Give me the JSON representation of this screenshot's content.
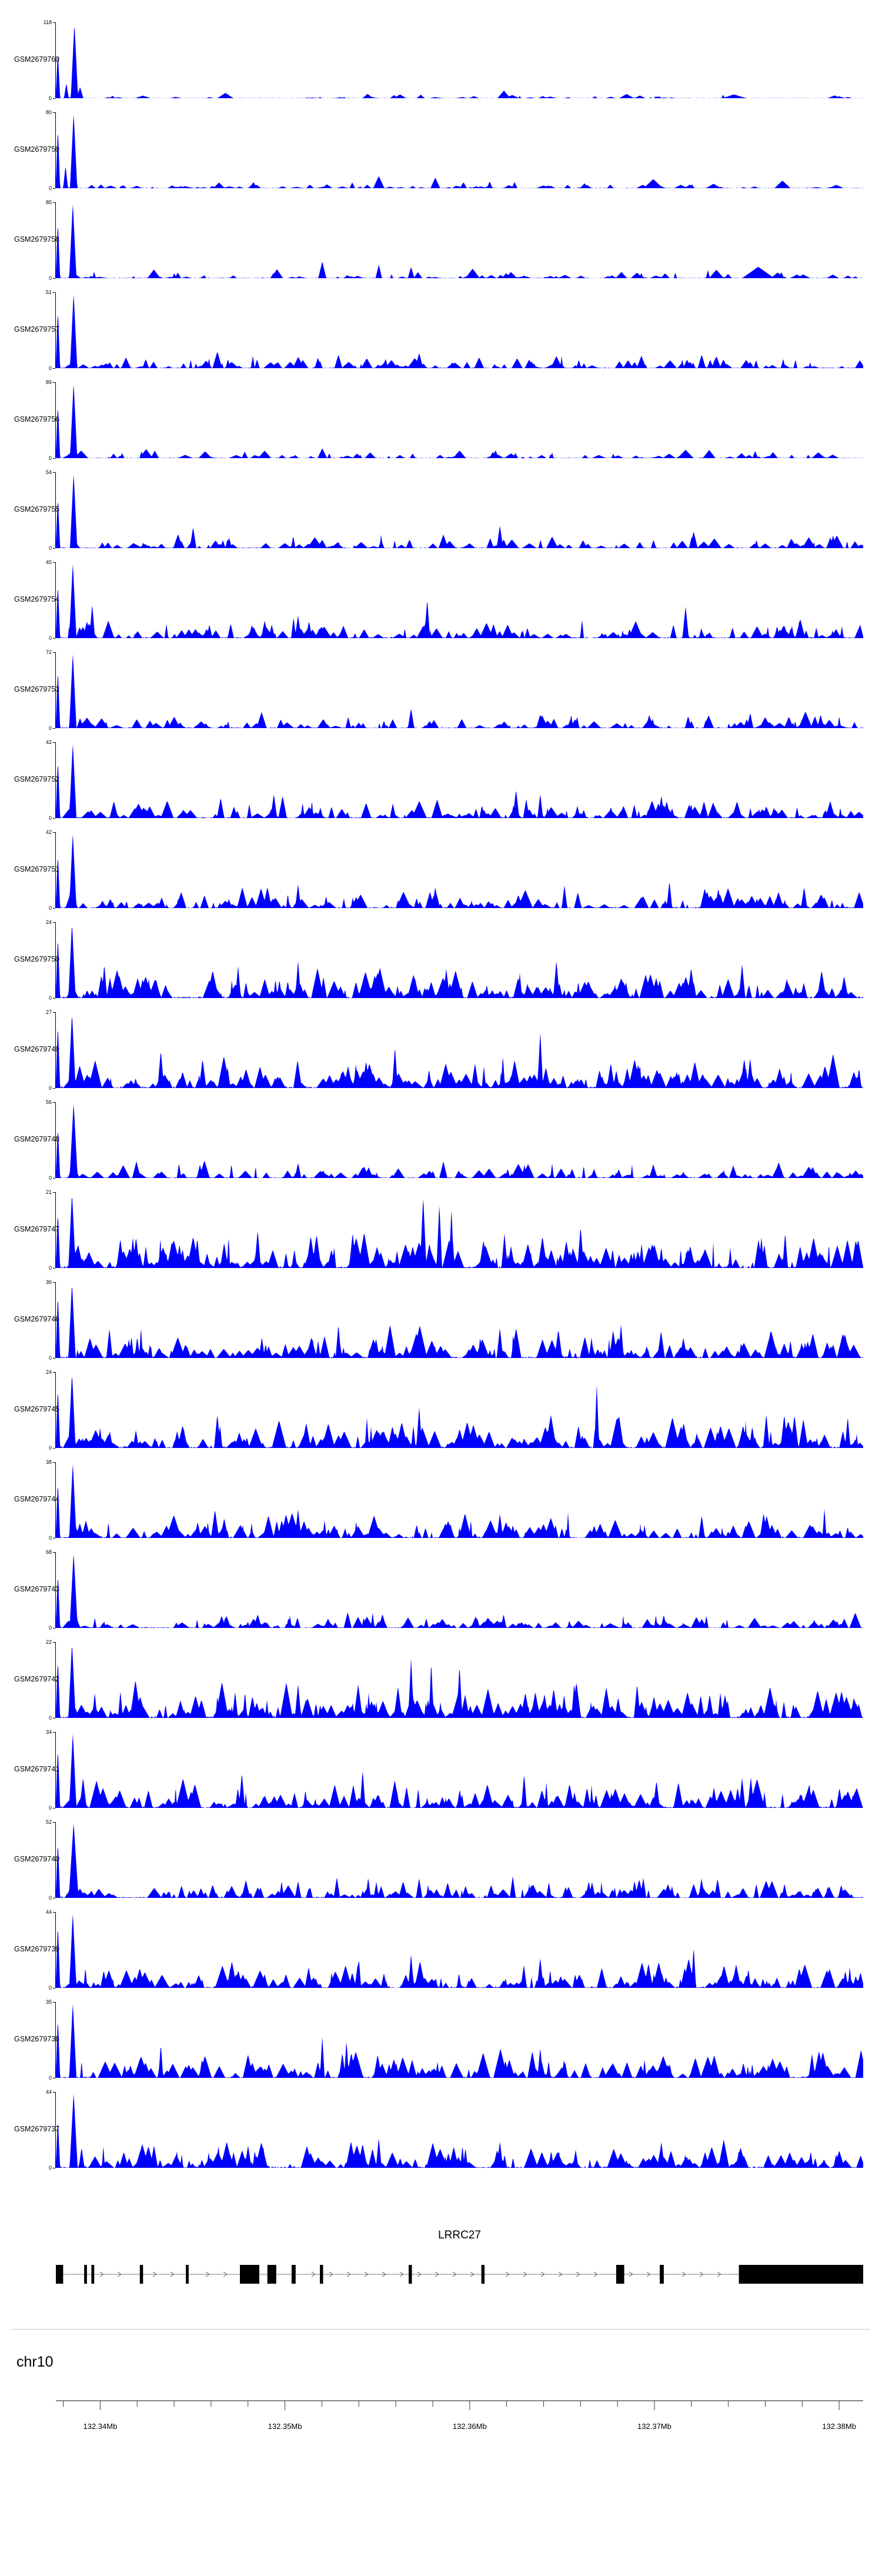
{
  "figure": {
    "chromosome_label": "chr10",
    "background_color": "#FFFFFF"
  },
  "gene_model": {
    "name": "LRRC27",
    "color": "#000000",
    "arrow_color": "#7d7d7d",
    "strand": "+",
    "exons": [
      [
        0.0,
        0.009
      ],
      [
        0.035,
        0.0035
      ],
      [
        0.044,
        0.0035
      ],
      [
        0.104,
        0.004
      ],
      [
        0.161,
        0.0035
      ],
      [
        0.228,
        0.024
      ],
      [
        0.262,
        0.011
      ],
      [
        0.292,
        0.005
      ],
      [
        0.327,
        0.004
      ],
      [
        0.437,
        0.004
      ],
      [
        0.527,
        0.004
      ],
      [
        0.694,
        0.01
      ],
      [
        0.748,
        0.005
      ],
      [
        0.846,
        0.154
      ]
    ]
  },
  "axis": {
    "start_mb": 132.3376,
    "end_mb": 132.3813,
    "minor_step_mb": 0.002,
    "major_labels": [
      {
        "mb": 132.34,
        "label": "132.34Mb"
      },
      {
        "mb": 132.35,
        "label": "132.35Mb"
      },
      {
        "mb": 132.36,
        "label": "132.36Mb"
      },
      {
        "mb": 132.37,
        "label": "132.37Mb"
      },
      {
        "mb": 132.38,
        "label": "132.38Mb"
      }
    ]
  },
  "chart_data": {
    "type": "area",
    "color": "#0000FF",
    "x_unit": "Mb",
    "x_range_mb": [
      132.3376,
      132.3813
    ],
    "y_axis": {
      "min_label": "0"
    },
    "tracks": [
      {
        "label": "GSM2679760",
        "ymax": 118,
        "seed": 11,
        "noise_count": 55,
        "noise_amp": 0.07,
        "peaks": [
          [
            0.0025,
            0.62,
            0.0028
          ],
          [
            0.023,
            1.0,
            0.0045
          ],
          [
            0.013,
            0.2,
            0.003
          ],
          [
            0.03,
            0.15,
            0.004
          ],
          [
            0.21,
            0.07,
            0.01
          ],
          [
            0.555,
            0.1,
            0.008
          ],
          [
            0.84,
            0.05,
            0.015
          ]
        ]
      },
      {
        "label": "GSM2679759",
        "ymax": 80,
        "seed": 12,
        "noise_count": 85,
        "noise_amp": 0.11,
        "peaks": [
          [
            0.0025,
            0.8,
            0.0028
          ],
          [
            0.022,
            1.0,
            0.0045
          ],
          [
            0.012,
            0.3,
            0.003
          ],
          [
            0.4,
            0.16,
            0.007
          ],
          [
            0.47,
            0.14,
            0.006
          ],
          [
            0.74,
            0.12,
            0.012
          ],
          [
            0.9,
            0.1,
            0.01
          ]
        ]
      },
      {
        "label": "GSM2679758",
        "ymax": 85,
        "seed": 13,
        "noise_count": 90,
        "noise_amp": 0.13,
        "peaks": [
          [
            0.0025,
            0.75,
            0.0028
          ],
          [
            0.021,
            1.0,
            0.0045
          ],
          [
            0.33,
            0.22,
            0.005
          ],
          [
            0.4,
            0.18,
            0.004
          ],
          [
            0.44,
            0.15,
            0.004
          ],
          [
            0.87,
            0.15,
            0.02
          ]
        ]
      },
      {
        "label": "GSM2679757",
        "ymax": 51,
        "seed": 14,
        "noise_count": 125,
        "noise_amp": 0.2,
        "peaks": [
          [
            0.0025,
            0.78,
            0.0028
          ],
          [
            0.022,
            1.0,
            0.0045
          ],
          [
            0.2,
            0.22,
            0.006
          ],
          [
            0.35,
            0.18,
            0.005
          ],
          [
            0.45,
            0.2,
            0.005
          ],
          [
            0.62,
            0.16,
            0.007
          ],
          [
            0.8,
            0.18,
            0.005
          ]
        ]
      },
      {
        "label": "GSM2679756",
        "ymax": 89,
        "seed": 15,
        "noise_count": 95,
        "noise_amp": 0.13,
        "peaks": [
          [
            0.0025,
            0.72,
            0.0028
          ],
          [
            0.022,
            1.0,
            0.0045
          ],
          [
            0.33,
            0.13,
            0.006
          ],
          [
            0.5,
            0.1,
            0.008
          ],
          [
            0.78,
            0.11,
            0.01
          ]
        ]
      },
      {
        "label": "GSM2679755",
        "ymax": 54,
        "seed": 16,
        "noise_count": 110,
        "noise_amp": 0.2,
        "peaks": [
          [
            0.0025,
            0.68,
            0.0028
          ],
          [
            0.022,
            1.0,
            0.0045
          ],
          [
            0.17,
            0.28,
            0.004
          ],
          [
            0.48,
            0.18,
            0.006
          ],
          [
            0.79,
            0.22,
            0.005
          ],
          [
            0.55,
            0.3,
            0.004
          ]
        ]
      },
      {
        "label": "GSM2679754",
        "ymax": 45,
        "seed": 17,
        "noise_count": 150,
        "noise_amp": 0.3,
        "peaks": [
          [
            0.0025,
            0.72,
            0.0028
          ],
          [
            0.021,
            1.0,
            0.0045
          ],
          [
            0.045,
            0.45,
            0.0035
          ],
          [
            0.46,
            0.52,
            0.0035
          ],
          [
            0.78,
            0.42,
            0.004
          ],
          [
            0.3,
            0.3,
            0.004
          ]
        ]
      },
      {
        "label": "GSM2679753",
        "ymax": 72,
        "seed": 18,
        "noise_count": 130,
        "noise_amp": 0.24,
        "peaks": [
          [
            0.0025,
            0.78,
            0.0028
          ],
          [
            0.021,
            1.0,
            0.0045
          ],
          [
            0.44,
            0.26,
            0.004
          ],
          [
            0.6,
            0.18,
            0.005
          ],
          [
            0.86,
            0.2,
            0.004
          ]
        ]
      },
      {
        "label": "GSM2679752",
        "ymax": 42,
        "seed": 19,
        "noise_count": 160,
        "noise_amp": 0.32,
        "peaks": [
          [
            0.0025,
            0.78,
            0.0028
          ],
          [
            0.021,
            1.0,
            0.0045
          ],
          [
            0.27,
            0.32,
            0.004
          ],
          [
            0.57,
            0.38,
            0.004
          ],
          [
            0.6,
            0.32,
            0.0035
          ],
          [
            0.75,
            0.3,
            0.004
          ]
        ]
      },
      {
        "label": "GSM2679751",
        "ymax": 42,
        "seed": 20,
        "noise_count": 150,
        "noise_amp": 0.32,
        "peaks": [
          [
            0.0025,
            0.72,
            0.0028
          ],
          [
            0.021,
            1.0,
            0.0045
          ],
          [
            0.3,
            0.32,
            0.0035
          ],
          [
            0.47,
            0.28,
            0.004
          ],
          [
            0.63,
            0.3,
            0.0035
          ],
          [
            0.76,
            0.36,
            0.0035
          ]
        ]
      },
      {
        "label": "GSM2679750",
        "ymax": 24,
        "seed": 21,
        "noise_count": 205,
        "noise_amp": 0.48,
        "peaks": [
          [
            0.0025,
            0.82,
            0.0028
          ],
          [
            0.02,
            1.0,
            0.0045
          ],
          [
            0.06,
            0.45,
            0.0035
          ],
          [
            0.3,
            0.5,
            0.0035
          ],
          [
            0.62,
            0.5,
            0.004
          ],
          [
            0.85,
            0.45,
            0.004
          ]
        ]
      },
      {
        "label": "GSM2679749",
        "ymax": 27,
        "seed": 22,
        "noise_count": 205,
        "noise_amp": 0.5,
        "peaks": [
          [
            0.0025,
            0.85,
            0.0028
          ],
          [
            0.02,
            1.0,
            0.0045
          ],
          [
            0.42,
            0.55,
            0.0035
          ],
          [
            0.6,
            0.75,
            0.0035
          ],
          [
            0.86,
            0.4,
            0.004
          ],
          [
            0.13,
            0.5,
            0.004
          ]
        ]
      },
      {
        "label": "GSM2679748",
        "ymax": 56,
        "seed": 23,
        "noise_count": 140,
        "noise_amp": 0.26,
        "peaks": [
          [
            0.0025,
            0.68,
            0.0028
          ],
          [
            0.022,
            1.0,
            0.005
          ],
          [
            0.48,
            0.22,
            0.005
          ],
          [
            0.74,
            0.18,
            0.005
          ],
          [
            0.3,
            0.2,
            0.004
          ]
        ]
      },
      {
        "label": "GSM2679747",
        "ymax": 21,
        "seed": 24,
        "noise_count": 225,
        "noise_amp": 0.55,
        "peaks": [
          [
            0.0025,
            0.75,
            0.0028
          ],
          [
            0.02,
            1.0,
            0.0045
          ],
          [
            0.455,
            0.95,
            0.004
          ],
          [
            0.475,
            0.85,
            0.0035
          ],
          [
            0.49,
            0.8,
            0.003
          ],
          [
            0.65,
            0.55,
            0.004
          ],
          [
            0.25,
            0.5,
            0.004
          ]
        ]
      },
      {
        "label": "GSM2679746",
        "ymax": 36,
        "seed": 25,
        "noise_count": 195,
        "noise_amp": 0.46,
        "peaks": [
          [
            0.0025,
            0.85,
            0.0028
          ],
          [
            0.02,
            1.0,
            0.0045
          ],
          [
            0.35,
            0.45,
            0.0035
          ],
          [
            0.7,
            0.45,
            0.0035
          ],
          [
            0.55,
            0.4,
            0.004
          ]
        ]
      },
      {
        "label": "GSM2679745",
        "ymax": 24,
        "seed": 26,
        "noise_count": 200,
        "noise_amp": 0.5,
        "peaks": [
          [
            0.0025,
            0.8,
            0.0028
          ],
          [
            0.02,
            1.0,
            0.0045
          ],
          [
            0.45,
            0.55,
            0.0035
          ],
          [
            0.67,
            0.85,
            0.003
          ],
          [
            0.88,
            0.45,
            0.004
          ],
          [
            0.2,
            0.45,
            0.004
          ]
        ]
      },
      {
        "label": "GSM2679744",
        "ymax": 38,
        "seed": 27,
        "noise_count": 180,
        "noise_amp": 0.42,
        "peaks": [
          [
            0.0025,
            0.75,
            0.0028
          ],
          [
            0.021,
            1.0,
            0.0045
          ],
          [
            0.3,
            0.38,
            0.004
          ],
          [
            0.55,
            0.32,
            0.004
          ],
          [
            0.8,
            0.3,
            0.004
          ]
        ]
      },
      {
        "label": "GSM2679743",
        "ymax": 68,
        "seed": 28,
        "noise_count": 150,
        "noise_amp": 0.24,
        "peaks": [
          [
            0.0025,
            0.72,
            0.0028
          ],
          [
            0.022,
            1.0,
            0.005
          ],
          [
            0.25,
            0.18,
            0.005
          ],
          [
            0.52,
            0.15,
            0.006
          ],
          [
            0.8,
            0.12,
            0.006
          ]
        ]
      },
      {
        "label": "GSM2679742",
        "ymax": 22,
        "seed": 29,
        "noise_count": 225,
        "noise_amp": 0.52,
        "peaks": [
          [
            0.0025,
            0.78,
            0.0028
          ],
          [
            0.02,
            1.0,
            0.0045
          ],
          [
            0.44,
            0.8,
            0.0035
          ],
          [
            0.465,
            0.75,
            0.003
          ],
          [
            0.5,
            0.7,
            0.0035
          ],
          [
            0.72,
            0.45,
            0.004
          ],
          [
            0.3,
            0.45,
            0.004
          ]
        ]
      },
      {
        "label": "GSM2679741",
        "ymax": 34,
        "seed": 30,
        "noise_count": 205,
        "noise_amp": 0.48,
        "peaks": [
          [
            0.0025,
            0.8,
            0.0028
          ],
          [
            0.021,
            1.0,
            0.0045
          ],
          [
            0.38,
            0.5,
            0.0035
          ],
          [
            0.58,
            0.45,
            0.0035
          ],
          [
            0.85,
            0.4,
            0.004
          ]
        ]
      },
      {
        "label": "GSM2679740",
        "ymax": 52,
        "seed": 31,
        "noise_count": 160,
        "noise_amp": 0.33,
        "peaks": [
          [
            0.0025,
            0.75,
            0.0028
          ],
          [
            0.022,
            1.0,
            0.006
          ],
          [
            0.45,
            0.26,
            0.004
          ],
          [
            0.66,
            0.22,
            0.004
          ],
          [
            0.3,
            0.22,
            0.004
          ]
        ]
      },
      {
        "label": "GSM2679739",
        "ymax": 44,
        "seed": 32,
        "noise_count": 195,
        "noise_amp": 0.42,
        "peaks": [
          [
            0.0025,
            0.85,
            0.0028
          ],
          [
            0.021,
            1.0,
            0.0045
          ],
          [
            0.44,
            0.45,
            0.0035
          ],
          [
            0.79,
            0.55,
            0.003
          ],
          [
            0.6,
            0.4,
            0.004
          ]
        ]
      },
      {
        "label": "GSM2679738",
        "ymax": 35,
        "seed": 33,
        "noise_count": 190,
        "noise_amp": 0.42,
        "peaks": [
          [
            0.0025,
            0.8,
            0.0028
          ],
          [
            0.021,
            1.0,
            0.0045
          ],
          [
            0.33,
            0.55,
            0.003
          ],
          [
            0.36,
            0.5,
            0.003
          ],
          [
            0.6,
            0.4,
            0.0035
          ],
          [
            0.13,
            0.45,
            0.003
          ]
        ]
      },
      {
        "label": "GSM2679737",
        "ymax": 44,
        "seed": 34,
        "noise_count": 200,
        "noise_amp": 0.42,
        "peaks": [
          [
            0.0025,
            0.65,
            0.0028
          ],
          [
            0.022,
            1.0,
            0.005
          ],
          [
            0.4,
            0.4,
            0.0035
          ],
          [
            0.75,
            0.35,
            0.004
          ],
          [
            0.55,
            0.35,
            0.004
          ]
        ]
      }
    ]
  }
}
